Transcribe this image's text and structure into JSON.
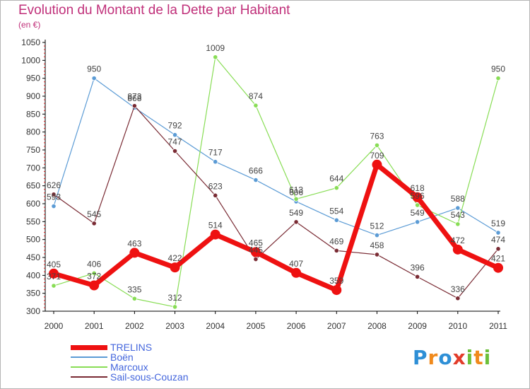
{
  "title": "Evolution du Montant de la Dette par Habitant",
  "subtitle": "(en €)",
  "brand": {
    "letters": [
      {
        "ch": "P",
        "color": "#2e8fd6"
      },
      {
        "ch": "r",
        "color": "#f08a1c"
      },
      {
        "ch": "o",
        "color": "#2e8fd6"
      },
      {
        "ch": "x",
        "color": "#e23c2a"
      },
      {
        "ch": "i",
        "color": "#6cc03a"
      },
      {
        "ch": "t",
        "color": "#f08a1c"
      },
      {
        "ch": "i",
        "color": "#6cc03a"
      }
    ]
  },
  "chart_data": {
    "type": "line",
    "x": [
      "2000",
      "2001",
      "2002",
      "2003",
      "2004",
      "2005",
      "2006",
      "2007",
      "2008",
      "2009",
      "2010",
      "2011"
    ],
    "ylim": [
      300,
      1050
    ],
    "yticks": [
      300,
      350,
      400,
      450,
      500,
      550,
      600,
      650,
      700,
      750,
      800,
      850,
      900,
      950,
      1000,
      1050
    ],
    "grid": false,
    "legend_position": "bottom-left",
    "series": [
      {
        "name": "Boën",
        "color": "#5b9bd5",
        "values": [
          593,
          950,
          868,
          792,
          717,
          666,
          606,
          554,
          512,
          549,
          588,
          519
        ],
        "labels": [
          "593",
          "950",
          "868",
          "792",
          "717",
          "666",
          "606",
          "554",
          "512",
          "549",
          "588",
          "519"
        ]
      },
      {
        "name": "Marcoux",
        "color": "#88dd55",
        "values": [
          371,
          406,
          335,
          312,
          1009,
          874,
          613,
          644,
          763,
          596,
          543,
          950
        ],
        "labels": [
          "371",
          "406",
          "335",
          "312",
          "1009",
          "874",
          "613",
          "644",
          "763",
          "596",
          "543",
          "950"
        ]
      },
      {
        "name": "Sail-sous-Couzan",
        "color": "#7a2b34",
        "values": [
          626,
          545,
          873,
          747,
          623,
          445,
          549,
          469,
          458,
          396,
          336,
          474
        ],
        "labels": [
          "626",
          "545",
          "873",
          "747",
          "623",
          "445",
          "549",
          "469",
          "458",
          "396",
          "336",
          "474"
        ]
      },
      {
        "name": "TRELINS",
        "color": "#ee1111",
        "values": [
          405,
          372,
          463,
          422,
          514,
          465,
          407,
          359,
          709,
          618,
          472,
          421
        ],
        "labels": [
          "405",
          "372",
          "463",
          "422",
          "514",
          "465",
          "407",
          "359",
          "709",
          "618",
          "472",
          "421"
        ]
      }
    ],
    "legend_order": [
      "TRELINS",
      "Boën",
      "Marcoux",
      "Sail-sous-Couzan"
    ]
  }
}
